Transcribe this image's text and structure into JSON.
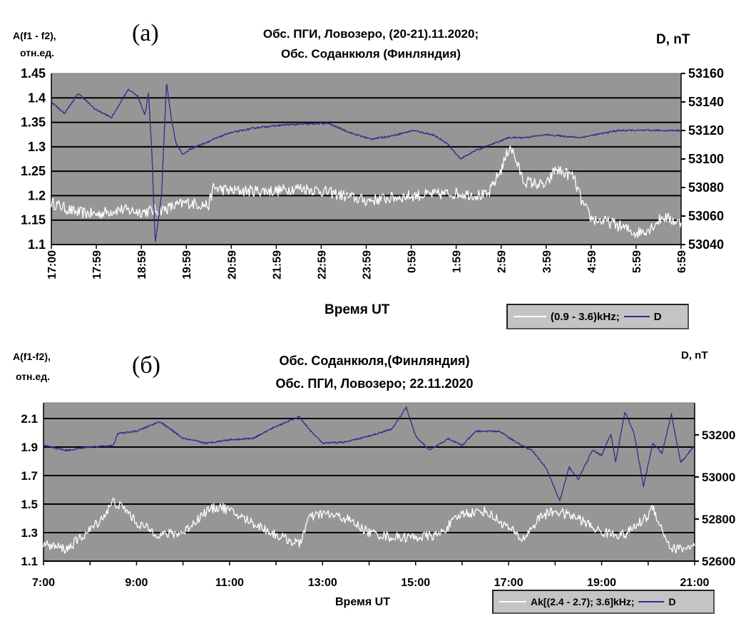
{
  "chart_data": [
    {
      "id": "a",
      "type": "line",
      "panel_label": "(а)",
      "title_lines": [
        "Обс. ПГИ, Ловозеро, (20-21).11.2020;",
        "Обс. Соданкюля (Финляндия)"
      ],
      "ylabel_left": [
        "A(f1 - f2),",
        "отн.ед."
      ],
      "ylabel_right": "D, nT",
      "xlabel": "Время UT",
      "xlim_hours_from_start": [
        0,
        14
      ],
      "x_ticks": [
        "17:00",
        "17:59",
        "18:59",
        "19:59",
        "20:59",
        "21:59",
        "22:59",
        "23:59",
        "0:59",
        "1:59",
        "2:59",
        "3:59",
        "4:59",
        "5:59",
        "6:59"
      ],
      "ylim_left": [
        1.1,
        1.45
      ],
      "y_ticks_left": [
        "1.1",
        "1.15",
        "1.2",
        "1.25",
        "1.3",
        "1.35",
        "1.4",
        "1.45"
      ],
      "ylim_right": [
        53040,
        53160
      ],
      "y_ticks_right": [
        "53040",
        "53060",
        "53080",
        "53100",
        "53120",
        "53140",
        "53160"
      ],
      "grid": true,
      "legend": {
        "placement": "bottom-right",
        "entries": [
          "(0.9 - 3.6)kHz;",
          "D"
        ]
      },
      "series": [
        {
          "name": "(0.9 - 3.6)kHz",
          "axis": "left",
          "color": "#ffffff",
          "x": [
            0,
            0.5,
            1,
            1.5,
            2,
            2.5,
            3,
            3.5,
            3.6,
            4,
            5,
            5.5,
            6,
            7,
            8,
            9,
            9.7,
            10,
            10.2,
            10.5,
            11,
            11.2,
            11.6,
            11.8,
            12,
            12.5,
            13,
            13.3,
            13.6,
            14
          ],
          "y": [
            1.186,
            1.167,
            1.162,
            1.172,
            1.167,
            1.172,
            1.186,
            1.18,
            1.216,
            1.21,
            1.21,
            1.216,
            1.21,
            1.19,
            1.2,
            1.205,
            1.2,
            1.254,
            1.303,
            1.23,
            1.22,
            1.254,
            1.24,
            1.186,
            1.153,
            1.143,
            1.123,
            1.133,
            1.157,
            1.143
          ]
        },
        {
          "name": "D",
          "axis": "right",
          "color": "#2e2e8e",
          "x": [
            0,
            0.29,
            0.6,
            0.97,
            1.34,
            1.71,
            1.92,
            2.08,
            2.16,
            2.24,
            2.31,
            2.45,
            2.56,
            2.66,
            2.77,
            2.93,
            3.09,
            3.4,
            3.93,
            4.57,
            5.2,
            6.15,
            6.68,
            7.1,
            7.53,
            8.05,
            8.48,
            8.8,
            9.09,
            9.43,
            9.85,
            10.17,
            10.49,
            11.01,
            11.75,
            12.6,
            13.45,
            14
          ],
          "y": [
            53140,
            53132,
            53146,
            53135,
            53129,
            53149,
            53144,
            53131,
            53146,
            53101,
            53041,
            53075,
            53154,
            53130,
            53111,
            53103,
            53107,
            53111,
            53118,
            53122,
            53124,
            53125,
            53118,
            53114,
            53116,
            53120,
            53117,
            53111,
            53100,
            53106,
            53111,
            53115,
            53115,
            53117,
            53115,
            53120,
            53120,
            53120
          ]
        }
      ]
    },
    {
      "id": "b",
      "type": "line",
      "panel_label": "(б)",
      "title_lines": [
        "Обс. Соданкюля,(Финляндия)",
        "Обс. ПГИ, Ловозеро; 22.11.2020"
      ],
      "ylabel_left": [
        "A(f1-f2),",
        "отн.ед."
      ],
      "ylabel_right": "D, nT",
      "xlabel": "Время UT",
      "xlim_hours": [
        7,
        21
      ],
      "x_ticks": [
        "7:00",
        "9:00",
        "11:00",
        "13:00",
        "15:00",
        "17:00",
        "19:00",
        "21:00"
      ],
      "ylim_left": [
        1.1,
        2.21
      ],
      "y_ticks_left": [
        "1.1",
        "1.3",
        "1.5",
        "1.7",
        "1.9",
        "2.1"
      ],
      "ylim_right": [
        52600,
        53352
      ],
      "y_ticks_right": [
        "52600",
        "52800",
        "53000",
        "53200"
      ],
      "grid": true,
      "legend": {
        "placement": "bottom-right",
        "entries": [
          "Ak[(2.4 - 2.7); 3.6]kHz;",
          "D"
        ]
      },
      "series": [
        {
          "name": "Ak[(2.4 - 2.7); 3.6]kHz",
          "axis": "left",
          "color": "#ffffff",
          "x": [
            7,
            7.5,
            8,
            8.3,
            8.5,
            8.8,
            9,
            9.5,
            10,
            10.5,
            10.8,
            11,
            11.5,
            12,
            12.5,
            12.7,
            13,
            13.5,
            14,
            14.5,
            15,
            15.5,
            16,
            16.5,
            17,
            17.3,
            17.7,
            18,
            18.5,
            19,
            19.5,
            20,
            20.1,
            20.3,
            20.5,
            21
          ],
          "y": [
            1.217,
            1.184,
            1.317,
            1.418,
            1.518,
            1.451,
            1.368,
            1.284,
            1.3,
            1.451,
            1.485,
            1.451,
            1.368,
            1.284,
            1.217,
            1.4,
            1.434,
            1.4,
            1.3,
            1.267,
            1.267,
            1.284,
            1.434,
            1.451,
            1.334,
            1.25,
            1.418,
            1.451,
            1.4,
            1.3,
            1.284,
            1.418,
            1.485,
            1.317,
            1.184,
            1.2
          ]
        },
        {
          "name": "D",
          "axis": "right",
          "color": "#2e2e8e",
          "x": [
            7,
            7.5,
            8,
            8.5,
            8.6,
            9,
            9.5,
            10,
            10.5,
            11,
            11.5,
            12,
            12.5,
            12.7,
            13,
            13.5,
            14,
            14.5,
            14.8,
            15,
            15.3,
            15.7,
            16,
            16.3,
            16.8,
            17.2,
            17.5,
            17.8,
            18.1,
            18.3,
            18.5,
            18.8,
            19,
            19.2,
            19.3,
            19.5,
            19.7,
            19.9,
            20.1,
            20.3,
            20.5,
            20.7,
            21
          ],
          "y": [
            53149,
            53126,
            53143,
            53149,
            53206,
            53217,
            53263,
            53183,
            53160,
            53177,
            53183,
            53240,
            53286,
            53229,
            53160,
            53166,
            53194,
            53229,
            53331,
            53194,
            53126,
            53183,
            53149,
            53217,
            53217,
            53160,
            53126,
            53046,
            52886,
            53046,
            52989,
            53126,
            53103,
            53206,
            53069,
            53309,
            53206,
            52954,
            53160,
            53114,
            53297,
            53069,
            53149
          ]
        }
      ]
    }
  ]
}
